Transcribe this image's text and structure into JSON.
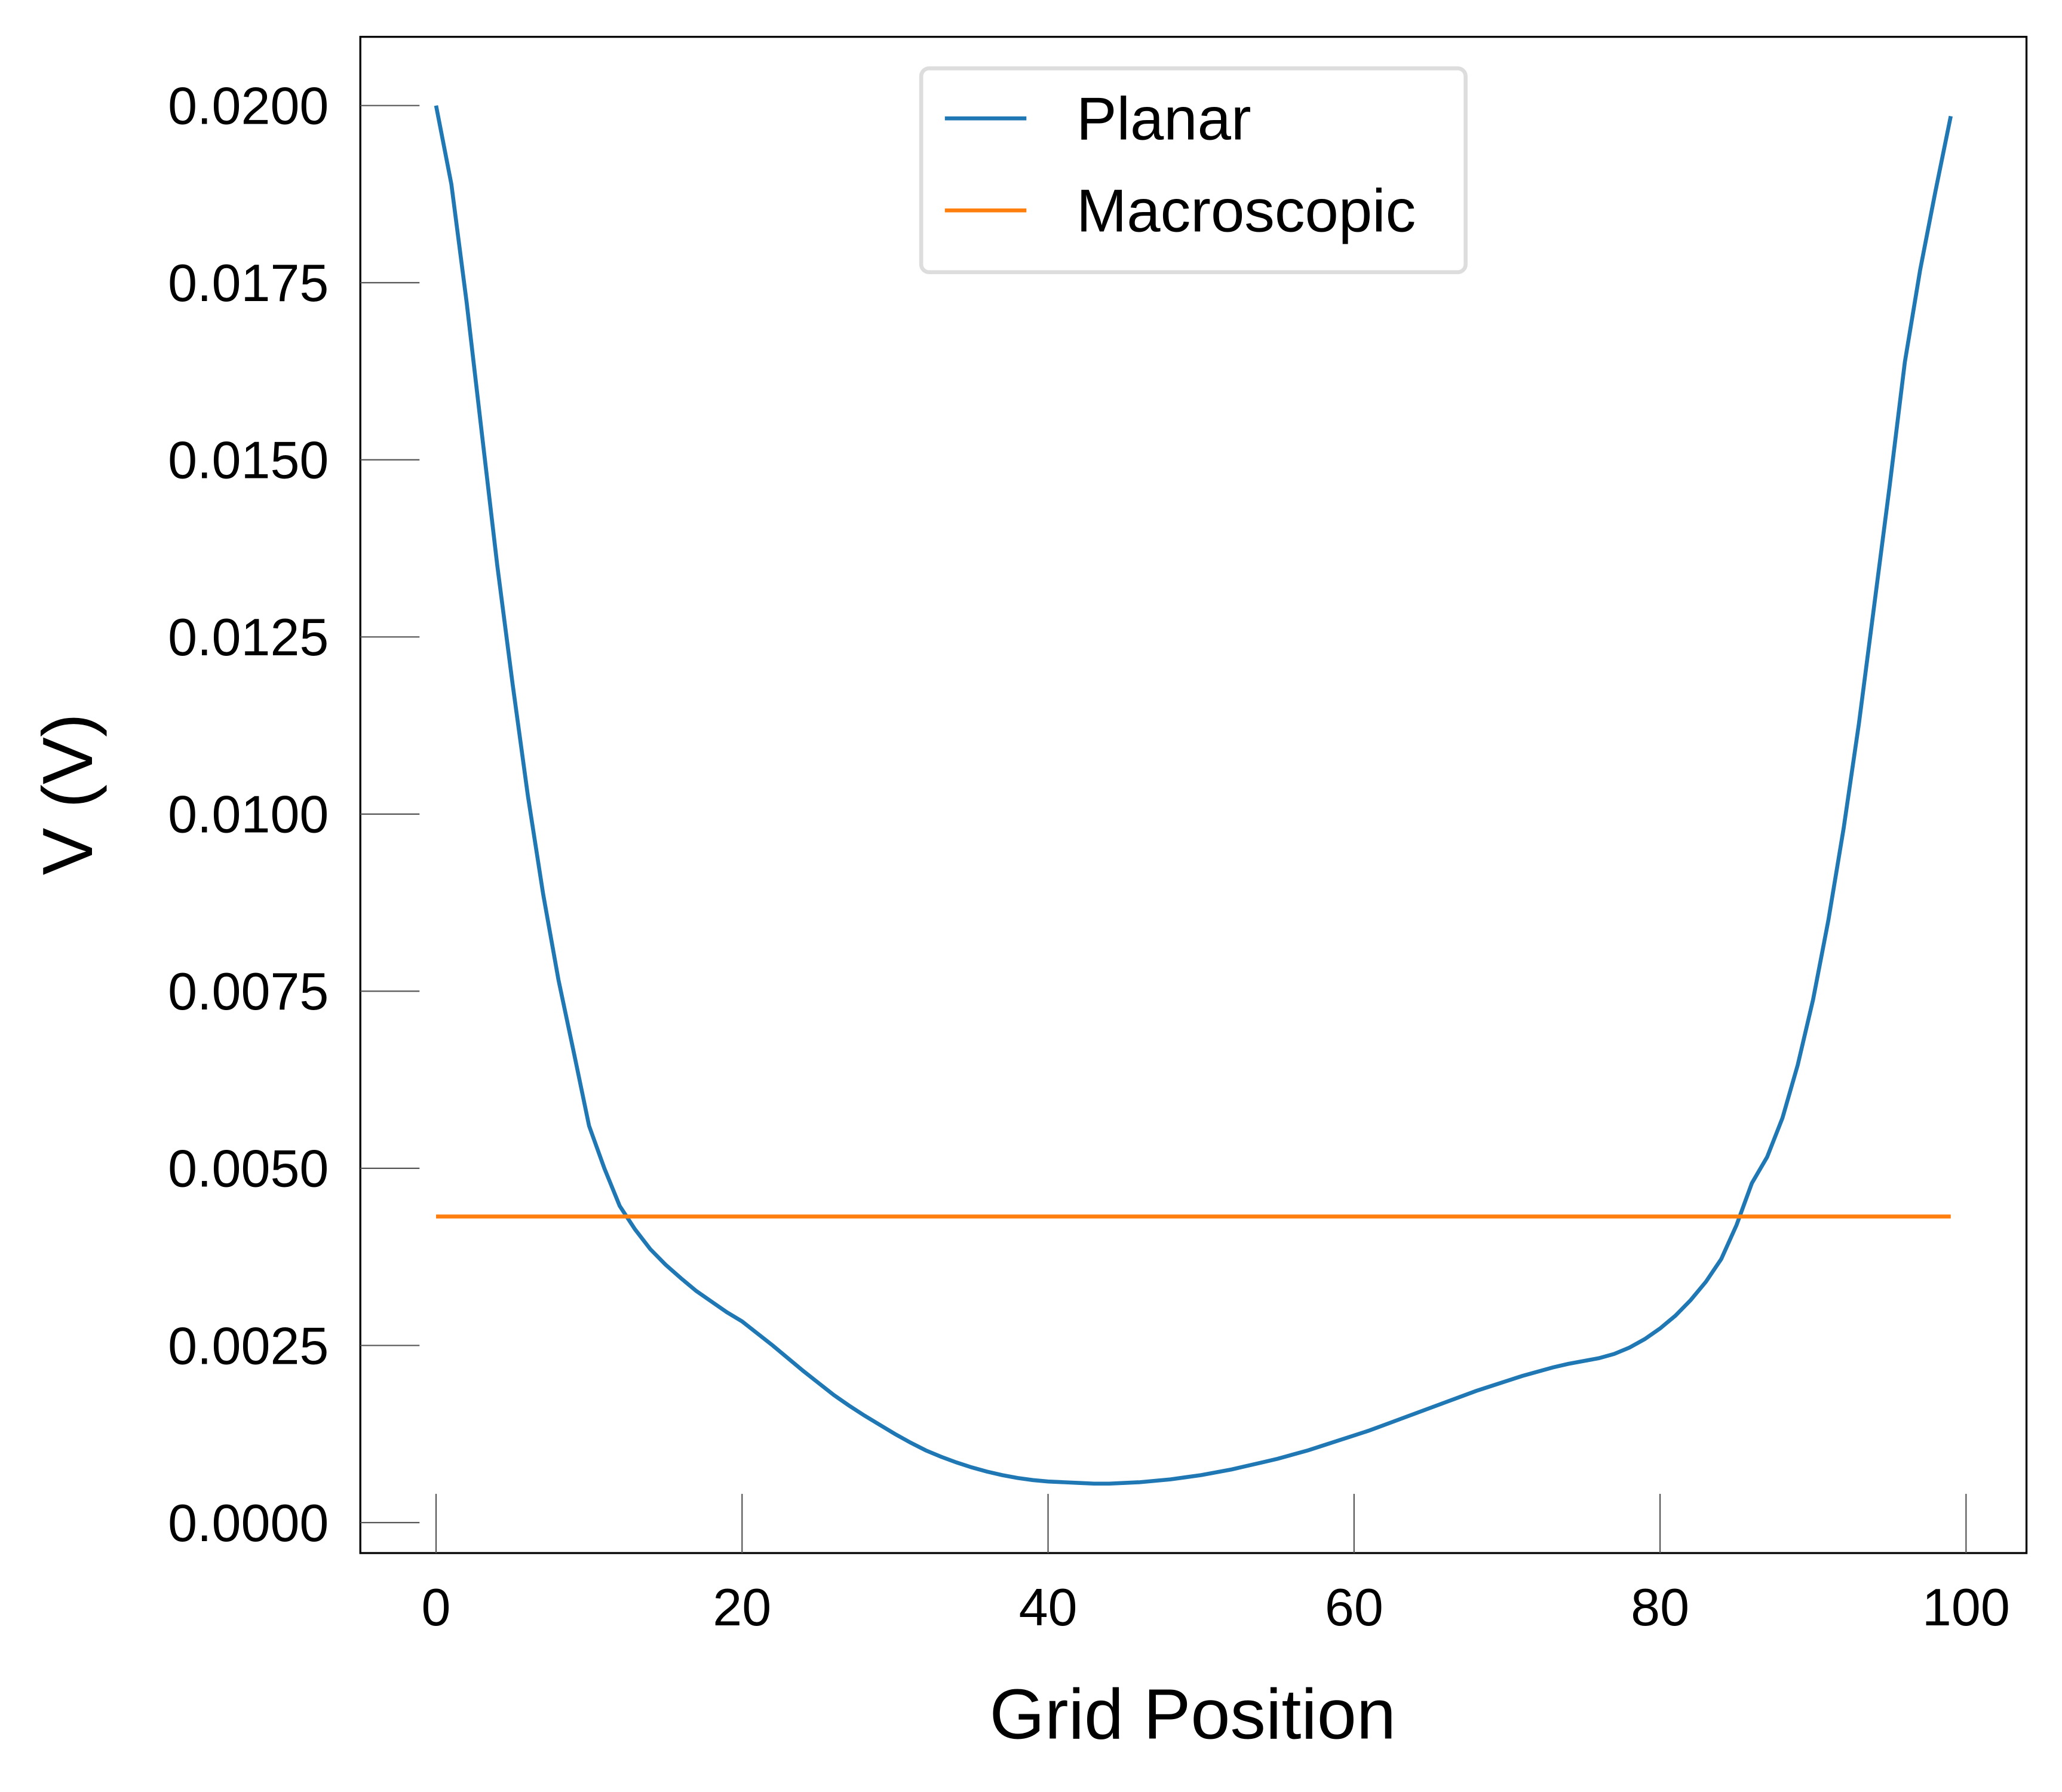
{
  "chart_data": {
    "type": "line",
    "xlabel": "Grid Position",
    "ylabel": "V (V)",
    "xlim": [
      -4.95,
      103.95
    ],
    "ylim": [
      -0.00043,
      0.02097
    ],
    "xticks": [
      0,
      20,
      40,
      60,
      80,
      100
    ],
    "yticks": [
      {
        "value": 0,
        "label": "0.0000"
      },
      {
        "value": 0.0025,
        "label": "0.0025"
      },
      {
        "value": 0.005,
        "label": "0.0050"
      },
      {
        "value": 0.0075,
        "label": "0.0075"
      },
      {
        "value": 0.01,
        "label": "0.0100"
      },
      {
        "value": 0.0125,
        "label": "0.0125"
      },
      {
        "value": 0.015,
        "label": "0.0150"
      },
      {
        "value": 0.0175,
        "label": "0.0175"
      },
      {
        "value": 0.02,
        "label": "0.0200"
      }
    ],
    "legend": "upper center",
    "series": [
      {
        "name": "Planar",
        "color": "#1f77b4",
        "x": [
          0,
          1,
          2,
          3,
          4,
          5,
          6,
          7,
          8,
          9,
          10,
          11,
          12,
          13,
          14,
          15,
          16,
          17,
          18,
          19,
          20,
          21,
          22,
          23,
          24,
          25,
          26,
          27,
          28,
          29,
          30,
          31,
          32,
          33,
          34,
          35,
          36,
          37,
          38,
          39,
          40,
          41,
          42,
          43,
          44,
          45,
          46,
          47,
          48,
          49,
          50,
          51,
          52,
          53,
          54,
          55,
          56,
          57,
          58,
          59,
          60,
          61,
          62,
          63,
          64,
          65,
          66,
          67,
          68,
          69,
          70,
          71,
          72,
          73,
          74,
          75,
          76,
          77,
          78,
          79,
          80,
          81,
          82,
          83,
          84,
          85,
          86,
          87,
          88,
          89,
          90,
          91,
          92,
          93,
          94,
          95,
          96,
          97,
          98,
          99
        ],
        "values": [
          0.02,
          0.01889,
          0.01722,
          0.01536,
          0.01351,
          0.01184,
          0.01026,
          0.00887,
          0.00766,
          0.00664,
          0.0056,
          0.005,
          0.00447,
          0.00414,
          0.00386,
          0.00364,
          0.00345,
          0.00327,
          0.00312,
          0.00297,
          0.00284,
          0.00267,
          0.0025,
          0.00232,
          0.00214,
          0.00197,
          0.0018,
          0.00165,
          0.00151,
          0.00138,
          0.00125,
          0.00113,
          0.00102,
          0.00093,
          0.00085,
          0.00078,
          0.00072,
          0.00067,
          0.00063,
          0.0006,
          0.00058,
          0.00057,
          0.00056,
          0.00055,
          0.00055,
          0.00056,
          0.00057,
          0.00059,
          0.00061,
          0.00064,
          0.00067,
          0.00071,
          0.00075,
          0.0008,
          0.00085,
          0.0009,
          0.00096,
          0.00102,
          0.00109,
          0.00116,
          0.00123,
          0.0013,
          0.00138,
          0.00146,
          0.00154,
          0.00162,
          0.0017,
          0.00178,
          0.00186,
          0.00193,
          0.002,
          0.00207,
          0.00213,
          0.00219,
          0.00224,
          0.00228,
          0.00232,
          0.00238,
          0.00247,
          0.00259,
          0.00274,
          0.00292,
          0.00314,
          0.0034,
          0.00372,
          0.0042,
          0.00479,
          0.00516,
          0.00571,
          0.00646,
          0.00738,
          0.0085,
          0.0098,
          0.01128,
          0.01295,
          0.01462,
          0.01638,
          0.01768,
          0.01879,
          0.01985
        ]
      },
      {
        "name": "Macroscopic",
        "color": "#ff7f0e",
        "x": [
          0,
          99
        ],
        "values": [
          0.00432,
          0.00432
        ]
      }
    ]
  }
}
